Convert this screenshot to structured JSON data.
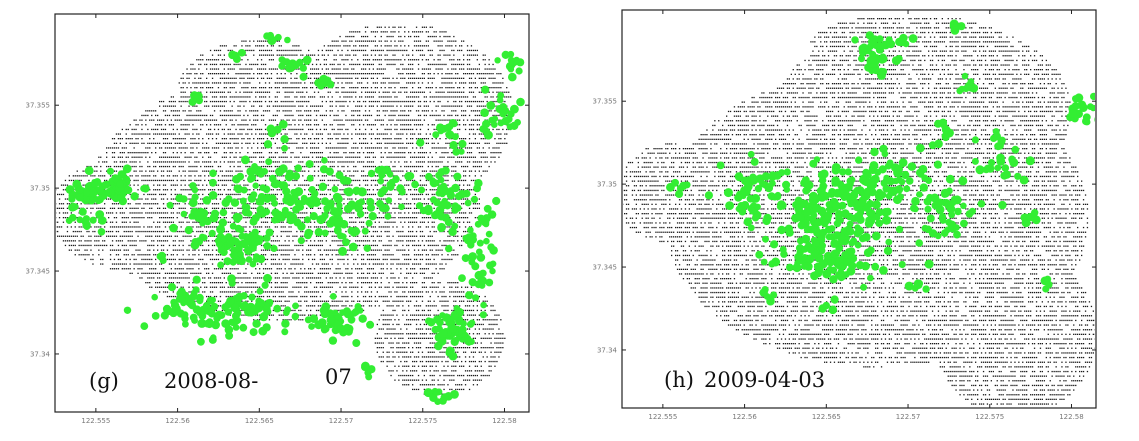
{
  "chart_data": [
    {
      "type": "scatter",
      "panel_label": "(g)",
      "date_label": "2008-08-",
      "date_label_suffix": "07",
      "xlabel": "",
      "ylabel": "",
      "xlim": [
        122.5525,
        122.5815
      ],
      "ylim": [
        37.3365,
        37.3605
      ],
      "x_ticks": [
        122.555,
        122.56,
        122.565,
        122.57,
        122.575,
        122.58
      ],
      "x_tick_labels": [
        "122.555",
        "122.56",
        "122.565",
        "122.57",
        "122.575",
        "122.58"
      ],
      "y_ticks": [
        37.355,
        37.35,
        37.345,
        37.34
      ],
      "y_tick_labels": [
        "37.355",
        "37.35",
        "37.345",
        "37.34"
      ],
      "colors": {
        "background_points": "#1a1a1a",
        "highlight_points": "#33ee33"
      },
      "grid": false,
      "series": [
        {
          "point_style": "small-dot",
          "regions": [
            {
              "lon_center": 122.5665,
              "lat_center": 37.3495,
              "lon_radius": 0.012,
              "lat_radius": 0.0075
            },
            {
              "lon_center": 122.5735,
              "lat_center": 37.3545,
              "lon_radius": 0.007,
              "lat_radius": 0.0055
            },
            {
              "lon_center": 122.5575,
              "lat_center": 37.3485,
              "lon_radius": 0.0055,
              "lat_radius": 0.0035
            },
            {
              "lon_center": 122.576,
              "lat_center": 37.341,
              "lon_radius": 0.004,
              "lat_radius": 0.0035
            },
            {
              "lon_center": 122.565,
              "lat_center": 37.356,
              "lon_radius": 0.005,
              "lat_radius": 0.003
            }
          ]
        },
        {
          "point_style": "large-dot",
          "clusters": [
            {
              "lon": 122.5545,
              "lat": 37.3496,
              "lon_spread": 0.0012,
              "lat_spread": 0.0008,
              "n": 40
            },
            {
              "lon": 122.5565,
              "lat": 37.35,
              "lon_spread": 0.0014,
              "lat_spread": 0.0008,
              "n": 45
            },
            {
              "lon": 122.5545,
              "lat": 37.348,
              "lon_spread": 0.001,
              "lat_spread": 0.0005,
              "n": 12
            },
            {
              "lon": 122.559,
              "lat": 37.3458,
              "lon_spread": 0.0003,
              "lat_spread": 0.0003,
              "n": 3
            },
            {
              "lon": 122.5625,
              "lat": 37.348,
              "lon_spread": 0.0025,
              "lat_spread": 0.0015,
              "n": 60
            },
            {
              "lon": 122.564,
              "lat": 37.3465,
              "lon_spread": 0.0015,
              "lat_spread": 0.001,
              "n": 40
            },
            {
              "lon": 122.5665,
              "lat": 37.3495,
              "lon_spread": 0.0022,
              "lat_spread": 0.002,
              "n": 90
            },
            {
              "lon": 122.57,
              "lat": 37.3485,
              "lon_spread": 0.0015,
              "lat_spread": 0.002,
              "n": 60
            },
            {
              "lon": 122.5725,
              "lat": 37.35,
              "lon_spread": 0.001,
              "lat_spread": 0.0012,
              "n": 25
            },
            {
              "lon": 122.564,
              "lat": 37.3425,
              "lon_spread": 0.003,
              "lat_spread": 0.0012,
              "n": 90
            },
            {
              "lon": 122.561,
              "lat": 37.343,
              "lon_spread": 0.0025,
              "lat_spread": 0.0008,
              "n": 45
            },
            {
              "lon": 122.57,
              "lat": 37.342,
              "lon_spread": 0.0018,
              "lat_spread": 0.0008,
              "n": 40
            },
            {
              "lon": 122.5765,
              "lat": 37.3495,
              "lon_spread": 0.0015,
              "lat_spread": 0.0025,
              "n": 60
            },
            {
              "lon": 122.5785,
              "lat": 37.346,
              "lon_spread": 0.0008,
              "lat_spread": 0.003,
              "n": 45
            },
            {
              "lon": 122.577,
              "lat": 37.3415,
              "lon_spread": 0.0012,
              "lat_spread": 0.0012,
              "n": 55
            },
            {
              "lon": 122.5795,
              "lat": 37.3545,
              "lon_spread": 0.0012,
              "lat_spread": 0.001,
              "n": 25
            },
            {
              "lon": 122.5805,
              "lat": 37.3575,
              "lon_spread": 0.0005,
              "lat_spread": 0.0008,
              "n": 12
            },
            {
              "lon": 122.5765,
              "lat": 37.3535,
              "lon_spread": 0.0006,
              "lat_spread": 0.0005,
              "n": 10
            },
            {
              "lon": 122.567,
              "lat": 37.3575,
              "lon_spread": 0.0008,
              "lat_spread": 0.0003,
              "n": 14
            },
            {
              "lon": 122.569,
              "lat": 37.3565,
              "lon_spread": 0.0008,
              "lat_spread": 0.0003,
              "n": 12
            },
            {
              "lon": 122.566,
              "lat": 37.359,
              "lon_spread": 0.0005,
              "lat_spread": 0.0002,
              "n": 6
            },
            {
              "lon": 122.5638,
              "lat": 37.358,
              "lon_spread": 0.0004,
              "lat_spread": 0.0002,
              "n": 5
            },
            {
              "lon": 122.561,
              "lat": 37.3555,
              "lon_spread": 0.0003,
              "lat_spread": 0.0002,
              "n": 4
            },
            {
              "lon": 122.566,
              "lat": 37.3535,
              "lon_spread": 0.0004,
              "lat_spread": 0.0003,
              "n": 5
            },
            {
              "lon": 122.576,
              "lat": 37.3375,
              "lon_spread": 0.0008,
              "lat_spread": 0.0004,
              "n": 10
            },
            {
              "lon": 122.5715,
              "lat": 37.339,
              "lon_spread": 0.0004,
              "lat_spread": 0.0003,
              "n": 5
            }
          ]
        }
      ]
    },
    {
      "type": "scatter",
      "panel_label": "(h)",
      "date_label": "2009-04-03",
      "xlabel": "",
      "ylabel": "",
      "xlim": [
        122.5525,
        122.5815
      ],
      "ylim": [
        37.3365,
        37.3605
      ],
      "x_ticks": [
        122.555,
        122.56,
        122.565,
        122.57,
        122.575,
        122.58
      ],
      "x_tick_labels": [
        "122.555",
        "122.56",
        "122.565",
        "122.57",
        "122.575",
        "122.58"
      ],
      "y_ticks": [
        37.355,
        37.35,
        37.345,
        37.34
      ],
      "y_tick_labels": [
        "37.355",
        "37.35",
        "37.345",
        "37.34"
      ],
      "colors": {
        "background_points": "#1a1a1a",
        "highlight_points": "#33ee33"
      },
      "grid": false,
      "series": [
        {
          "point_style": "small-dot",
          "regions": [
            {
              "lon_center": 122.568,
              "lat_center": 37.348,
              "lon_radius": 0.013,
              "lat_radius": 0.009
            },
            {
              "lon_center": 122.571,
              "lat_center": 37.3545,
              "lon_radius": 0.009,
              "lat_radius": 0.0055
            },
            {
              "lon_center": 122.5765,
              "lat_center": 37.341,
              "lon_radius": 0.005,
              "lat_radius": 0.005
            },
            {
              "lon_center": 122.5555,
              "lat_center": 37.3495,
              "lon_radius": 0.0035,
              "lat_radius": 0.003
            },
            {
              "lon_center": 122.57,
              "lat_center": 37.3585,
              "lon_radius": 0.006,
              "lat_radius": 0.0018
            }
          ]
        },
        {
          "point_style": "large-dot",
          "clusters": [
            {
              "lon": 122.5655,
              "lat": 37.348,
              "lon_spread": 0.0035,
              "lat_spread": 0.0025,
              "n": 200
            },
            {
              "lon": 122.561,
              "lat": 37.3495,
              "lon_spread": 0.002,
              "lat_spread": 0.0015,
              "n": 60
            },
            {
              "lon": 122.569,
              "lat": 37.35,
              "lon_spread": 0.002,
              "lat_spread": 0.0015,
              "n": 60
            },
            {
              "lon": 122.565,
              "lat": 37.3455,
              "lon_spread": 0.0025,
              "lat_spread": 0.0012,
              "n": 70
            },
            {
              "lon": 122.5725,
              "lat": 37.3485,
              "lon_spread": 0.0015,
              "lat_spread": 0.0015,
              "n": 40
            },
            {
              "lon": 122.5755,
              "lat": 37.351,
              "lon_spread": 0.0012,
              "lat_spread": 0.0008,
              "n": 20
            },
            {
              "lon": 122.5775,
              "lat": 37.348,
              "lon_spread": 0.0008,
              "lat_spread": 0.0003,
              "n": 8
            },
            {
              "lon": 122.5755,
              "lat": 37.3528,
              "lon_spread": 0.0003,
              "lat_spread": 0.0008,
              "n": 8
            },
            {
              "lon": 122.568,
              "lat": 37.3578,
              "lon_spread": 0.001,
              "lat_spread": 0.0012,
              "n": 40
            },
            {
              "lon": 122.5698,
              "lat": 37.3588,
              "lon_spread": 0.0004,
              "lat_spread": 0.0004,
              "n": 6
            },
            {
              "lon": 122.5728,
              "lat": 37.3595,
              "lon_spread": 0.0003,
              "lat_spread": 0.0003,
              "n": 5
            },
            {
              "lon": 122.574,
              "lat": 37.356,
              "lon_spread": 0.0008,
              "lat_spread": 0.0003,
              "n": 8
            },
            {
              "lon": 122.5722,
              "lat": 37.3535,
              "lon_spread": 0.0003,
              "lat_spread": 0.0008,
              "n": 8
            },
            {
              "lon": 122.5805,
              "lat": 37.3545,
              "lon_spread": 0.0008,
              "lat_spread": 0.0008,
              "n": 18
            },
            {
              "lon": 122.556,
              "lat": 37.35,
              "lon_spread": 0.0005,
              "lat_spread": 0.0004,
              "n": 6
            },
            {
              "lon": 122.5785,
              "lat": 37.344,
              "lon_spread": 0.0002,
              "lat_spread": 0.0003,
              "n": 4
            },
            {
              "lon": 122.5615,
              "lat": 37.3432,
              "lon_spread": 0.0004,
              "lat_spread": 0.0003,
              "n": 5
            },
            {
              "lon": 122.5652,
              "lat": 37.3428,
              "lon_spread": 0.0004,
              "lat_spread": 0.0003,
              "n": 5
            },
            {
              "lon": 122.5705,
              "lat": 37.3438,
              "lon_spread": 0.0005,
              "lat_spread": 0.0003,
              "n": 6
            }
          ]
        }
      ]
    }
  ]
}
